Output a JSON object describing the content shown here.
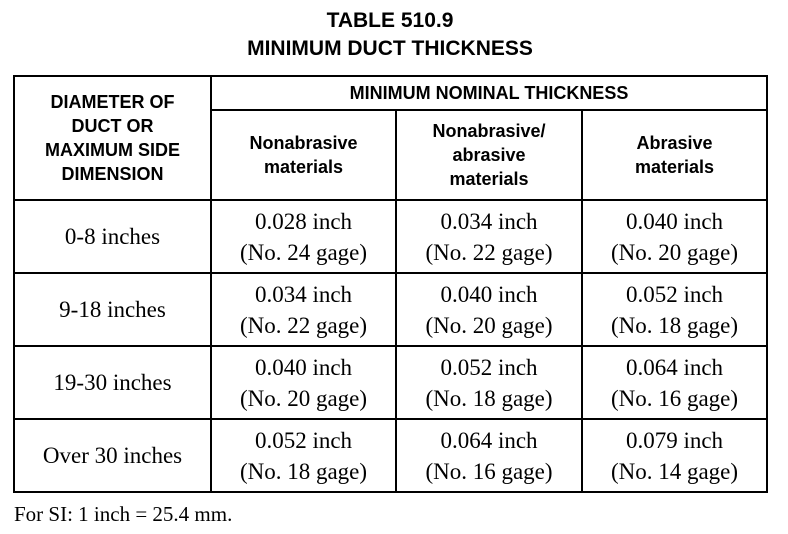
{
  "title": {
    "line1": "TABLE 510.9",
    "line2": "MINIMUM DUCT THICKNESS"
  },
  "table": {
    "row_header": [
      "DIAMETER OF",
      "DUCT OR",
      "MAXIMUM SIDE",
      "DIMENSION"
    ],
    "group_header": "MINIMUM NOMINAL THICKNESS",
    "columns": [
      {
        "lines": [
          "Nonabrasive",
          "materials"
        ]
      },
      {
        "lines": [
          "Nonabrasive/",
          "abrasive",
          "materials"
        ]
      },
      {
        "lines": [
          "Abrasive",
          "materials"
        ]
      }
    ],
    "rows": [
      {
        "label": "0-8 inches",
        "cells": [
          {
            "thickness": "0.028 inch",
            "gage": "(No. 24 gage)"
          },
          {
            "thickness": "0.034 inch",
            "gage": "(No. 22 gage)"
          },
          {
            "thickness": "0.040 inch",
            "gage": "(No. 20 gage)"
          }
        ]
      },
      {
        "label": "9-18 inches",
        "cells": [
          {
            "thickness": "0.034 inch",
            "gage": "(No. 22 gage)"
          },
          {
            "thickness": "0.040 inch",
            "gage": "(No. 20 gage)"
          },
          {
            "thickness": "0.052 inch",
            "gage": "(No. 18 gage)"
          }
        ]
      },
      {
        "label": "19-30 inches",
        "cells": [
          {
            "thickness": "0.040 inch",
            "gage": "(No. 20 gage)"
          },
          {
            "thickness": "0.052 inch",
            "gage": "(No. 18 gage)"
          },
          {
            "thickness": "0.064 inch",
            "gage": "(No. 16 gage)"
          }
        ]
      },
      {
        "label": "Over 30 inches",
        "cells": [
          {
            "thickness": "0.052 inch",
            "gage": "(No. 18 gage)"
          },
          {
            "thickness": "0.064 inch",
            "gage": "(No. 16 gage)"
          },
          {
            "thickness": "0.079 inch",
            "gage": "(No. 14 gage)"
          }
        ]
      }
    ]
  },
  "footnote": "For SI: 1 inch = 25.4 mm."
}
